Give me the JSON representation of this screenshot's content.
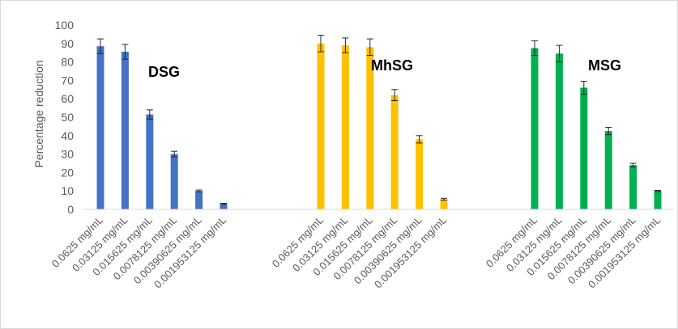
{
  "chart_data": {
    "type": "bar",
    "title": "",
    "xlabel": "",
    "ylabel": "Percentage reduction",
    "ylim": [
      0,
      100
    ],
    "yticks": [
      0,
      10,
      20,
      30,
      40,
      50,
      60,
      70,
      80,
      90,
      100
    ],
    "grid": false,
    "legend": "none",
    "groups": [
      {
        "name": "DSG",
        "color": "#4472c4",
        "categories": [
          "0.0625 mg/mL",
          "0.03125 mg/mL",
          "0.015625 mg/mL",
          "0.0078125 mg/mL",
          "0.00390625 mg/mL",
          "0.001953125 mg/mL"
        ],
        "values": [
          88.5,
          85.5,
          51.5,
          30,
          10,
          3
        ],
        "errors": [
          4,
          4,
          2.5,
          1.5,
          0.5,
          0.3
        ]
      },
      {
        "name": "MhSG",
        "color": "#ffc000",
        "categories": [
          "0.0625 mg/mL",
          "0.03125 mg/mL",
          "0.015625 mg/mL",
          "0.0078125 mg/mL",
          "0.00390625 mg/mL",
          "0.001953125 mg/mL"
        ],
        "values": [
          90,
          89,
          88,
          62,
          38,
          5.5
        ],
        "errors": [
          4.5,
          4,
          4.5,
          3,
          2,
          0.5
        ]
      },
      {
        "name": "MSG",
        "color": "#00b050",
        "categories": [
          "0.0625 mg/mL",
          "0.03125 mg/mL",
          "0.015625 mg/mL",
          "0.0078125 mg/mL",
          "0.00390625 mg/mL",
          "0.001953125 mg/mL"
        ],
        "values": [
          87.5,
          84.5,
          66,
          42.5,
          24,
          10
        ],
        "errors": [
          4,
          4.5,
          3.5,
          2,
          1,
          0.3
        ]
      }
    ]
  }
}
